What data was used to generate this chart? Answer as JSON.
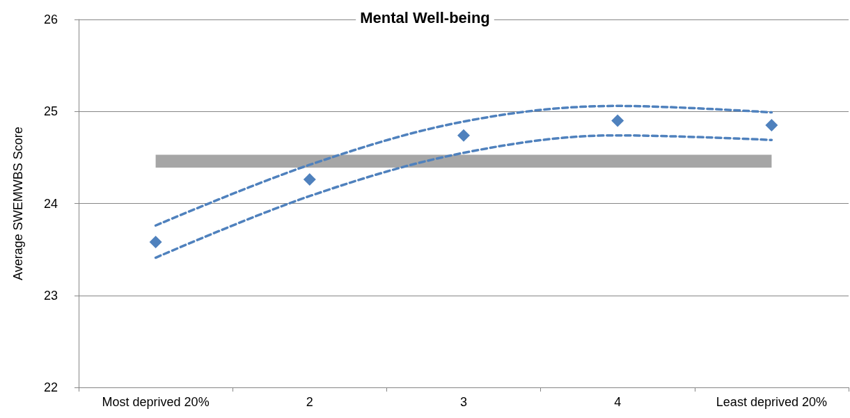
{
  "chart_data": {
    "type": "scatter",
    "title": "Mental Well-being",
    "ylabel": "Average SWEMWBS Score",
    "categories": [
      "Most deprived 20%",
      "2",
      "3",
      "4",
      "Least deprived 20%"
    ],
    "series": [
      {
        "color": "#4f81bd",
        "marker": "diamond",
        "values": [
          23.58,
          24.26,
          24.74,
          24.9,
          24.85
        ]
      },
      {
        "type": "line",
        "color": "#4f81bd",
        "marker": "none",
        "line_style": "dashed",
        "values": [
          23.76,
          24.42,
          24.89,
          25.06,
          24.99
        ]
      },
      {
        "type": "line",
        "color": "#4f81bd",
        "marker": "none",
        "line_style": "dashed",
        "values": [
          23.41,
          24.08,
          24.55,
          24.74,
          24.69
        ]
      }
    ],
    "bands": [
      {
        "axis": "y",
        "from": 24.39,
        "to": 24.53,
        "color": "#a6a6a6"
      }
    ],
    "ylim": [
      22,
      26
    ],
    "yticks": [
      22,
      23,
      24,
      25,
      26
    ],
    "grid": "y"
  }
}
